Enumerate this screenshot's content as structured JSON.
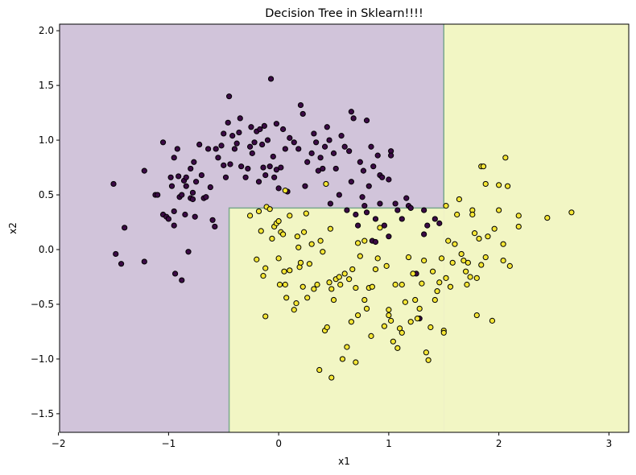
{
  "chart_data": {
    "type": "scatter",
    "title": "Decision Tree in Sklearn!!!!",
    "xlabel": "x1",
    "ylabel": "x2",
    "xlim": [
      -1.99,
      3.18
    ],
    "ylim": [
      -1.67,
      2.06
    ],
    "xticks": [
      -2,
      -1,
      0,
      1,
      2,
      3
    ],
    "xtick_labels": [
      "−2",
      "−1",
      "0",
      "1",
      "2",
      "3"
    ],
    "yticks": [
      -1.5,
      -1.0,
      -0.5,
      0.0,
      0.5,
      1.0,
      1.5,
      2.0
    ],
    "ytick_labels": [
      "−1.5",
      "−1.0",
      "−0.5",
      "0.0",
      "0.5",
      "1.0",
      "1.5",
      "2.0"
    ],
    "grid": false,
    "decision_regions": {
      "class0_color": "#d1c4da",
      "class1_color": "#f2f6c4",
      "boundary_color": "#7aa88c",
      "split_x1_outer": 1.5,
      "split_x2": 0.38,
      "split_x1_inner": -0.45,
      "description": "class 1 where x1 > 1.5, or where x2 <= 0.38 and x1 > -0.45; otherwise class 0"
    },
    "series": [
      {
        "class": 0,
        "color": "#3b0a45",
        "points": [
          [
            -1.5,
            0.6
          ],
          [
            -1.48,
            -0.04
          ],
          [
            -1.43,
            -0.13
          ],
          [
            -1.4,
            0.2
          ],
          [
            -1.22,
            0.72
          ],
          [
            -1.22,
            -0.11
          ],
          [
            -1.12,
            0.5
          ],
          [
            -1.1,
            0.5
          ],
          [
            -1.05,
            0.98
          ],
          [
            -1.05,
            0.32
          ],
          [
            -1.02,
            0.3
          ],
          [
            -1.0,
            0.28
          ],
          [
            -0.98,
            0.66
          ],
          [
            -0.97,
            0.58
          ],
          [
            -0.95,
            0.84
          ],
          [
            -0.95,
            0.35
          ],
          [
            -0.95,
            0.22
          ],
          [
            -0.94,
            -0.22
          ],
          [
            -0.92,
            0.92
          ],
          [
            -0.91,
            0.67
          ],
          [
            -0.9,
            0.48
          ],
          [
            -0.88,
            0.5
          ],
          [
            -0.88,
            -0.28
          ],
          [
            -0.86,
            0.63
          ],
          [
            -0.85,
            0.32
          ],
          [
            -0.84,
            0.66
          ],
          [
            -0.84,
            0.58
          ],
          [
            -0.82,
            -0.02
          ],
          [
            -0.8,
            0.74
          ],
          [
            -0.8,
            0.47
          ],
          [
            -0.78,
            0.52
          ],
          [
            -0.78,
            0.46
          ],
          [
            -0.77,
            0.8
          ],
          [
            -0.76,
            0.3
          ],
          [
            -0.75,
            0.62
          ],
          [
            -0.72,
            0.96
          ],
          [
            -0.7,
            0.68
          ],
          [
            -0.68,
            0.47
          ],
          [
            -0.66,
            0.48
          ],
          [
            -0.64,
            0.92
          ],
          [
            -0.62,
            0.57
          ],
          [
            -0.6,
            0.27
          ],
          [
            -0.58,
            0.21
          ],
          [
            -0.57,
            0.92
          ],
          [
            -0.55,
            0.84
          ],
          [
            -0.52,
            0.95
          ],
          [
            -0.5,
            1.06
          ],
          [
            -0.5,
            0.77
          ],
          [
            -0.48,
            0.66
          ],
          [
            -0.46,
            1.16
          ],
          [
            -0.45,
            1.4
          ],
          [
            -0.44,
            0.78
          ],
          [
            -0.42,
            1.04
          ],
          [
            -0.4,
            0.92
          ],
          [
            -0.38,
            0.97
          ],
          [
            -0.36,
            1.07
          ],
          [
            -0.35,
            1.2
          ],
          [
            -0.34,
            0.76
          ],
          [
            -0.3,
            0.66
          ],
          [
            -0.28,
            0.74
          ],
          [
            -0.26,
            0.94
          ],
          [
            -0.25,
            1.12
          ],
          [
            -0.24,
            0.88
          ],
          [
            -0.22,
            0.98
          ],
          [
            -0.2,
            1.08
          ],
          [
            -0.18,
            0.62
          ],
          [
            -0.17,
            1.1
          ],
          [
            -0.15,
            0.96
          ],
          [
            -0.14,
            0.75
          ],
          [
            -0.13,
            1.13
          ],
          [
            -0.12,
            0.68
          ],
          [
            -0.1,
            1.0
          ],
          [
            -0.08,
            0.76
          ],
          [
            -0.07,
            1.56
          ],
          [
            -0.05,
            0.85
          ],
          [
            -0.04,
            0.66
          ],
          [
            -0.02,
            1.15
          ],
          [
            -0.02,
            0.73
          ],
          [
            0.0,
            0.56
          ],
          [
            0.02,
            0.75
          ],
          [
            0.04,
            1.1
          ],
          [
            0.06,
            0.92
          ],
          [
            0.08,
            0.53
          ],
          [
            0.1,
            1.02
          ],
          [
            0.14,
            0.98
          ],
          [
            0.18,
            0.92
          ],
          [
            0.2,
            1.32
          ],
          [
            0.22,
            1.24
          ],
          [
            0.24,
            0.58
          ],
          [
            0.26,
            0.8
          ],
          [
            0.3,
            0.88
          ],
          [
            0.32,
            1.06
          ],
          [
            0.34,
            0.98
          ],
          [
            0.36,
            0.72
          ],
          [
            0.38,
            0.84
          ],
          [
            0.4,
            0.74
          ],
          [
            0.42,
            0.94
          ],
          [
            0.44,
            1.12
          ],
          [
            0.46,
            1.0
          ],
          [
            0.47,
            0.42
          ],
          [
            0.5,
            0.88
          ],
          [
            0.52,
            0.74
          ],
          [
            0.55,
            0.5
          ],
          [
            0.57,
            1.04
          ],
          [
            0.6,
            0.94
          ],
          [
            0.62,
            0.36
          ],
          [
            0.64,
            0.9
          ],
          [
            0.66,
            1.26
          ],
          [
            0.66,
            0.62
          ],
          [
            0.68,
            1.2
          ],
          [
            0.7,
            0.32
          ],
          [
            0.72,
            0.22
          ],
          [
            0.74,
            0.8
          ],
          [
            0.76,
            0.48
          ],
          [
            0.77,
            0.72
          ],
          [
            0.78,
            0.4
          ],
          [
            0.8,
            1.18
          ],
          [
            0.8,
            0.34
          ],
          [
            0.82,
            0.58
          ],
          [
            0.84,
            0.94
          ],
          [
            0.85,
            0.08
          ],
          [
            0.86,
            0.76
          ],
          [
            0.88,
            0.28
          ],
          [
            0.88,
            0.07
          ],
          [
            0.9,
            0.86
          ],
          [
            0.92,
            0.68
          ],
          [
            0.92,
            0.42
          ],
          [
            0.94,
            0.66
          ],
          [
            0.96,
            0.22
          ],
          [
            1.0,
            0.12
          ],
          [
            1.0,
            0.64
          ],
          [
            1.02,
            0.9
          ],
          [
            1.02,
            0.86
          ],
          [
            1.06,
            0.42
          ],
          [
            1.08,
            0.36
          ],
          [
            1.12,
            0.28
          ],
          [
            1.16,
            0.47
          ],
          [
            1.18,
            0.4
          ],
          [
            1.2,
            0.38
          ],
          [
            1.25,
            -0.22
          ],
          [
            1.28,
            -0.63
          ],
          [
            1.32,
            0.14
          ],
          [
            1.32,
            0.36
          ],
          [
            1.35,
            0.22
          ],
          [
            1.42,
            0.28
          ],
          [
            1.46,
            0.24
          ]
        ]
      },
      {
        "class": 1,
        "color": "#f5e634",
        "points": [
          [
            -0.26,
            0.31
          ],
          [
            -0.2,
            -0.09
          ],
          [
            -0.18,
            0.35
          ],
          [
            -0.16,
            0.17
          ],
          [
            -0.14,
            -0.24
          ],
          [
            -0.12,
            -0.61
          ],
          [
            -0.12,
            -0.17
          ],
          [
            -0.11,
            0.39
          ],
          [
            -0.08,
            0.37
          ],
          [
            -0.06,
            0.1
          ],
          [
            -0.04,
            0.21
          ],
          [
            -0.02,
            0.24
          ],
          [
            0.0,
            -0.08
          ],
          [
            0.0,
            0.26
          ],
          [
            0.01,
            -0.32
          ],
          [
            0.02,
            0.16
          ],
          [
            0.04,
            0.14
          ],
          [
            0.05,
            -0.2
          ],
          [
            0.06,
            0.54
          ],
          [
            0.06,
            -0.32
          ],
          [
            0.07,
            -0.44
          ],
          [
            0.1,
            -0.19
          ],
          [
            0.1,
            0.31
          ],
          [
            0.14,
            -0.55
          ],
          [
            0.16,
            -0.49
          ],
          [
            0.17,
            0.12
          ],
          [
            0.18,
            0.02
          ],
          [
            0.19,
            -0.16
          ],
          [
            0.2,
            -0.12
          ],
          [
            0.22,
            -0.34
          ],
          [
            0.23,
            0.16
          ],
          [
            0.25,
            0.33
          ],
          [
            0.26,
            -0.44
          ],
          [
            0.28,
            -0.13
          ],
          [
            0.3,
            0.05
          ],
          [
            0.32,
            -0.36
          ],
          [
            0.35,
            -0.32
          ],
          [
            0.37,
            -1.1
          ],
          [
            0.38,
            0.08
          ],
          [
            0.4,
            -0.02
          ],
          [
            0.42,
            -0.74
          ],
          [
            0.43,
            0.6
          ],
          [
            0.44,
            -0.71
          ],
          [
            0.46,
            -0.3
          ],
          [
            0.47,
            0.19
          ],
          [
            0.48,
            -1.17
          ],
          [
            0.5,
            -0.46
          ],
          [
            0.52,
            -0.27
          ],
          [
            0.55,
            -0.25
          ],
          [
            0.56,
            -0.32
          ],
          [
            0.58,
            -1.0
          ],
          [
            0.6,
            -0.22
          ],
          [
            0.62,
            -0.89
          ],
          [
            0.64,
            -0.27
          ],
          [
            0.66,
            -0.66
          ],
          [
            0.67,
            -0.18
          ],
          [
            0.7,
            -0.35
          ],
          [
            0.7,
            -1.03
          ],
          [
            0.72,
            -0.6
          ],
          [
            0.74,
            -0.06
          ],
          [
            0.78,
            -0.46
          ],
          [
            0.8,
            -0.54
          ],
          [
            0.82,
            -0.35
          ],
          [
            0.84,
            -0.79
          ],
          [
            0.85,
            -0.34
          ],
          [
            0.88,
            -0.18
          ],
          [
            0.9,
            -0.08
          ],
          [
            0.92,
            0.2
          ],
          [
            0.96,
            -0.7
          ],
          [
            0.98,
            -0.15
          ],
          [
            1.0,
            -0.6
          ],
          [
            1.0,
            -0.55
          ],
          [
            1.02,
            -0.65
          ],
          [
            1.04,
            -0.84
          ],
          [
            1.06,
            -0.32
          ],
          [
            1.08,
            -0.9
          ],
          [
            1.1,
            -0.72
          ],
          [
            1.12,
            -0.76
          ],
          [
            1.15,
            -0.48
          ],
          [
            1.18,
            -0.07
          ],
          [
            1.2,
            -0.66
          ],
          [
            1.22,
            -0.22
          ],
          [
            1.24,
            -0.46
          ],
          [
            1.26,
            -0.63
          ],
          [
            1.28,
            -0.54
          ],
          [
            1.3,
            -0.31
          ],
          [
            1.32,
            -0.1
          ],
          [
            1.34,
            -0.94
          ],
          [
            1.36,
            -1.01
          ],
          [
            1.38,
            -0.71
          ],
          [
            1.4,
            -0.2
          ],
          [
            1.42,
            -0.46
          ],
          [
            1.44,
            -0.38
          ],
          [
            1.46,
            -0.3
          ],
          [
            1.48,
            -0.08
          ],
          [
            1.5,
            -0.74
          ],
          [
            1.5,
            -0.76
          ],
          [
            1.52,
            0.4
          ],
          [
            1.52,
            -0.26
          ],
          [
            1.54,
            0.08
          ],
          [
            1.56,
            -0.34
          ],
          [
            1.58,
            -0.12
          ],
          [
            1.6,
            0.05
          ],
          [
            1.62,
            0.32
          ],
          [
            1.64,
            0.46
          ],
          [
            1.66,
            -0.04
          ],
          [
            1.68,
            -0.1
          ],
          [
            1.7,
            -0.2
          ],
          [
            1.71,
            -0.32
          ],
          [
            1.72,
            -0.12
          ],
          [
            1.74,
            -0.25
          ],
          [
            1.76,
            0.36
          ],
          [
            1.76,
            0.32
          ],
          [
            1.78,
            0.15
          ],
          [
            1.8,
            -0.26
          ],
          [
            1.8,
            -0.6
          ],
          [
            1.82,
            0.1
          ],
          [
            1.84,
            -0.14
          ],
          [
            1.84,
            0.76
          ],
          [
            1.86,
            0.76
          ],
          [
            1.88,
            0.6
          ],
          [
            1.88,
            -0.07
          ],
          [
            1.9,
            0.12
          ],
          [
            1.94,
            -0.65
          ],
          [
            1.96,
            0.19
          ],
          [
            2.0,
            0.59
          ],
          [
            2.0,
            0.36
          ],
          [
            2.04,
            0.05
          ],
          [
            2.04,
            -0.1
          ],
          [
            2.06,
            0.84
          ],
          [
            2.08,
            0.58
          ],
          [
            2.1,
            -0.15
          ],
          [
            2.18,
            0.21
          ],
          [
            2.18,
            0.31
          ],
          [
            2.44,
            0.29
          ],
          [
            2.66,
            0.34
          ],
          [
            0.72,
            0.06
          ],
          [
            0.78,
            0.08
          ],
          [
            1.12,
            -0.32
          ],
          [
            0.48,
            -0.36
          ]
        ]
      }
    ]
  }
}
